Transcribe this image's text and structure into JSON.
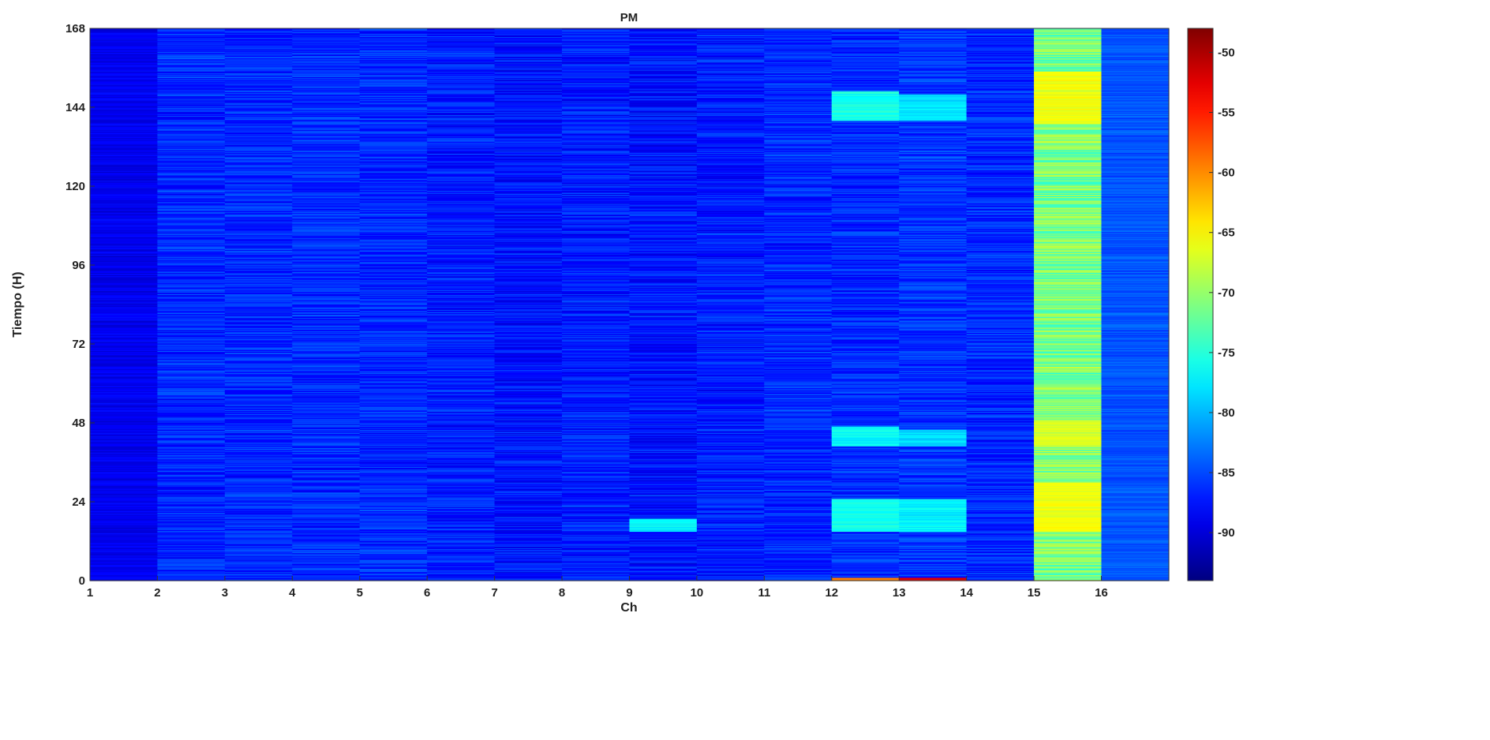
{
  "chart_data": {
    "type": "heatmap",
    "title": "PM",
    "xlabel": "Ch",
    "ylabel": "Tiempo (H)",
    "xlim": [
      1,
      17
    ],
    "ylim": [
      0,
      168
    ],
    "x_ticks": [
      "1",
      "2",
      "3",
      "4",
      "5",
      "6",
      "7",
      "8",
      "9",
      "10",
      "11",
      "12",
      "13",
      "14",
      "15",
      "16"
    ],
    "y_ticks": [
      "0",
      "24",
      "48",
      "72",
      "96",
      "120",
      "144",
      "168"
    ],
    "colorbar": {
      "colormap": "jet",
      "range": [
        -94,
        -48
      ],
      "ticks": [
        "-50",
        "-55",
        "-60",
        "-65",
        "-70",
        "-75",
        "-80",
        "-85",
        "-90"
      ]
    },
    "channels": [
      {
        "ch": 1,
        "base": -89.0,
        "spread": 1.5
      },
      {
        "ch": 2,
        "base": -86.5,
        "spread": 2.5
      },
      {
        "ch": 3,
        "base": -86.5,
        "spread": 2.5
      },
      {
        "ch": 4,
        "base": -86.5,
        "spread": 2.5
      },
      {
        "ch": 5,
        "base": -86.5,
        "spread": 2.5
      },
      {
        "ch": 6,
        "base": -87.0,
        "spread": 2.5
      },
      {
        "ch": 7,
        "base": -87.5,
        "spread": 2.5
      },
      {
        "ch": 8,
        "base": -87.0,
        "spread": 2.5
      },
      {
        "ch": 9,
        "base": -87.5,
        "spread": 2.5
      },
      {
        "ch": 10,
        "base": -87.0,
        "spread": 2.5
      },
      {
        "ch": 11,
        "base": -86.5,
        "spread": 2.5
      },
      {
        "ch": 12,
        "base": -86.5,
        "spread": 2.5
      },
      {
        "ch": 13,
        "base": -86.0,
        "spread": 2.5
      },
      {
        "ch": 14,
        "base": -86.5,
        "spread": 2.5
      },
      {
        "ch": 15,
        "base": -71.0,
        "spread": 4.0
      },
      {
        "ch": 16,
        "base": -84.5,
        "spread": 1.5
      }
    ],
    "bursts": [
      {
        "ch": 15,
        "from": 15,
        "to": 30,
        "value": -66
      },
      {
        "ch": 15,
        "from": 41,
        "to": 49,
        "value": -67
      },
      {
        "ch": 15,
        "from": 139,
        "to": 155,
        "value": -66
      },
      {
        "ch": 12,
        "from": 15,
        "to": 25,
        "value": -76
      },
      {
        "ch": 12,
        "from": 41,
        "to": 47,
        "value": -77
      },
      {
        "ch": 12,
        "from": 140,
        "to": 149,
        "value": -76
      },
      {
        "ch": 13,
        "from": 15,
        "to": 25,
        "value": -77
      },
      {
        "ch": 13,
        "from": 41,
        "to": 46,
        "value": -78
      },
      {
        "ch": 13,
        "from": 140,
        "to": 148,
        "value": -78
      },
      {
        "ch": 9,
        "from": 15,
        "to": 19,
        "value": -77
      },
      {
        "ch": 12,
        "from": 0,
        "to": 1,
        "value": -60
      },
      {
        "ch": 13,
        "from": 0,
        "to": 1,
        "value": -52
      }
    ]
  }
}
